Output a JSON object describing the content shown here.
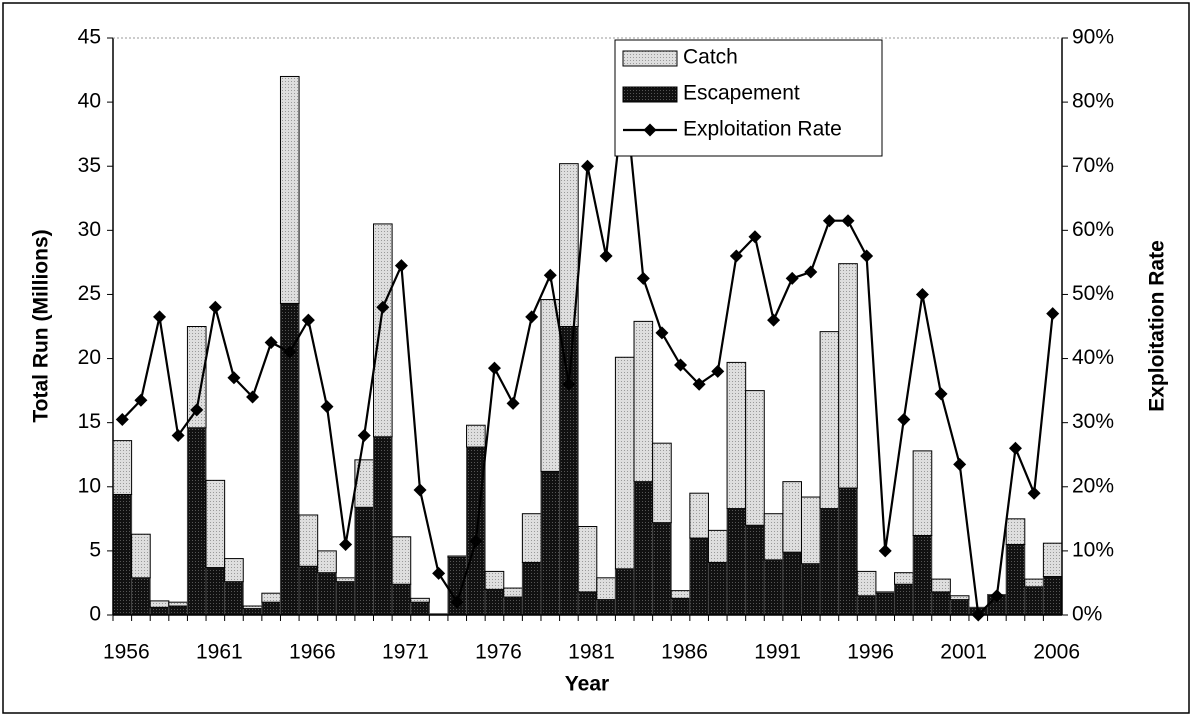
{
  "chart_data": {
    "type": "bar",
    "x_label": "Year",
    "y_label": "Total Run (Millions)",
    "y2_label": "Exploitation Rate",
    "categories": [
      "1956",
      null,
      null,
      null,
      null,
      "1961",
      null,
      null,
      null,
      null,
      "1966",
      null,
      null,
      null,
      null,
      "1971",
      null,
      null,
      null,
      null,
      "1976",
      null,
      null,
      null,
      null,
      "1981",
      null,
      null,
      null,
      null,
      "1986",
      null,
      null,
      null,
      null,
      "1991",
      null,
      null,
      null,
      null,
      "1996",
      null,
      null,
      null,
      null,
      "2001",
      null,
      null,
      null,
      null,
      "2006"
    ],
    "series": [
      {
        "name": "Catch",
        "type": "bar",
        "stacked": true,
        "color": "#d4d4d4",
        "values": [
          4.2,
          3.4,
          0.5,
          0.3,
          7.9,
          6.8,
          1.8,
          0.2,
          0.7,
          17.7,
          4.0,
          1.7,
          0.3,
          3.7,
          16.6,
          3.7,
          0.3,
          0.0,
          0.1,
          1.7,
          1.4,
          0.7,
          3.8,
          13.4,
          12.7,
          5.1,
          1.7,
          16.5,
          12.5,
          6.2,
          0.6,
          3.5,
          2.5,
          11.4,
          10.5,
          3.6,
          5.5,
          5.2,
          13.8,
          17.5,
          1.9,
          0.1,
          0.9,
          6.6,
          1.0,
          0.3,
          0,
          0,
          2.0,
          0.6,
          2.6
        ]
      },
      {
        "name": "Escapement",
        "type": "bar",
        "stacked": true,
        "color": "#141414",
        "values": [
          9.4,
          2.9,
          0.6,
          0.7,
          14.6,
          3.7,
          2.6,
          0.5,
          1.0,
          24.3,
          3.8,
          3.3,
          2.6,
          8.4,
          13.9,
          2.4,
          1.0,
          0.1,
          4.5,
          13.1,
          2.0,
          1.4,
          4.1,
          11.2,
          22.5,
          1.8,
          1.2,
          3.6,
          10.4,
          7.2,
          1.3,
          6.0,
          4.1,
          8.3,
          7.0,
          4.3,
          4.9,
          4.0,
          8.3,
          9.9,
          1.5,
          1.7,
          2.4,
          6.2,
          1.8,
          1.2,
          0.6,
          1.6,
          5.5,
          2.2,
          3.0
        ]
      },
      {
        "name": "Exploitation Rate",
        "type": "line",
        "axis": "y2",
        "color": "#000000",
        "values": [
          30.5,
          33.5,
          46.5,
          28,
          32,
          48,
          37,
          34,
          42.5,
          41,
          46,
          32.5,
          11,
          28,
          48,
          54.5,
          19.5,
          6.5,
          2,
          11.5,
          38.5,
          33,
          46.5,
          53,
          36,
          70,
          56,
          82,
          52.5,
          44,
          39,
          36,
          38,
          56,
          59,
          46,
          52.5,
          53.5,
          61.5,
          61.5,
          56,
          10,
          30.5,
          50,
          34.5,
          23.5,
          0,
          3,
          26,
          19,
          47
        ]
      }
    ],
    "ylim": [
      0,
      45
    ],
    "yticks": [
      0,
      5,
      10,
      15,
      20,
      25,
      30,
      35,
      40,
      45
    ],
    "y2lim": [
      0,
      90
    ],
    "y2ticks": [
      {
        "value": 0,
        "label": "0%"
      },
      {
        "value": 10,
        "label": "10%"
      },
      {
        "value": 20,
        "label": "20%"
      },
      {
        "value": 30,
        "label": "30%"
      },
      {
        "value": 40,
        "label": "40%"
      },
      {
        "value": 50,
        "label": "50%"
      },
      {
        "value": 60,
        "label": "60%"
      },
      {
        "value": 70,
        "label": "70%"
      },
      {
        "value": 80,
        "label": "80%"
      },
      {
        "value": 90,
        "label": "90%"
      }
    ],
    "grid": false,
    "legend": "top-center"
  }
}
